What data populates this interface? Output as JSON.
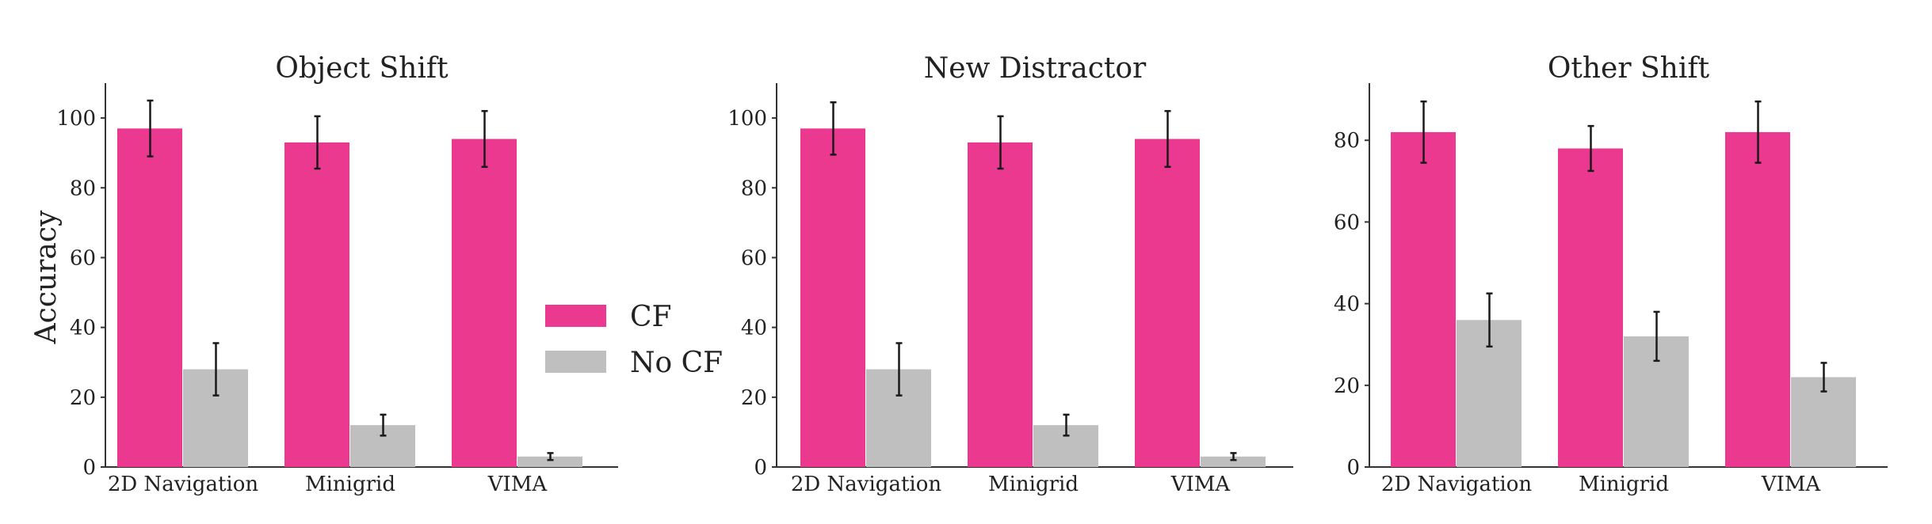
{
  "figure": {
    "ylabel": "Accuracy",
    "colors": {
      "cf": "#EC3990",
      "nocf": "#BFBFBF",
      "axis": "#333333",
      "error": "#1a1a1a"
    },
    "legend": {
      "placement": "center-left-gap",
      "entries": [
        {
          "label": "CF",
          "color": "#EC3990"
        },
        {
          "label": "No CF",
          "color": "#BFBFBF"
        }
      ]
    }
  },
  "chart_data": [
    {
      "type": "bar",
      "title": "Object Shift",
      "categories": [
        "2D Navigation",
        "Minigrid",
        "VIMA"
      ],
      "ylim": [
        0,
        110
      ],
      "yticks": [
        0,
        20,
        40,
        60,
        80,
        100
      ],
      "grid": false,
      "series": [
        {
          "name": "CF",
          "values": [
            97,
            93,
            94
          ],
          "error": [
            8,
            7.5,
            8
          ]
        },
        {
          "name": "No CF",
          "values": [
            28,
            12,
            3
          ],
          "error": [
            7.5,
            3,
            1
          ]
        }
      ]
    },
    {
      "type": "bar",
      "title": "New Distractor",
      "categories": [
        "2D Navigation",
        "Minigrid",
        "VIMA"
      ],
      "ylim": [
        0,
        110
      ],
      "yticks": [
        0,
        20,
        40,
        60,
        80,
        100
      ],
      "grid": false,
      "series": [
        {
          "name": "CF",
          "values": [
            97,
            93,
            94
          ],
          "error": [
            7.5,
            7.5,
            8
          ]
        },
        {
          "name": "No CF",
          "values": [
            28,
            12,
            3
          ],
          "error": [
            7.5,
            3,
            1
          ]
        }
      ]
    },
    {
      "type": "bar",
      "title": "Other Shift",
      "categories": [
        "2D Navigation",
        "Minigrid",
        "VIMA"
      ],
      "ylim": [
        0,
        94
      ],
      "yticks": [
        0,
        20,
        40,
        60,
        80
      ],
      "grid": false,
      "series": [
        {
          "name": "CF",
          "values": [
            82,
            78,
            82
          ],
          "error": [
            7.5,
            5.5,
            7.5
          ]
        },
        {
          "name": "No CF",
          "values": [
            36,
            32,
            22
          ],
          "error": [
            6.5,
            6,
            3.5
          ]
        }
      ]
    }
  ]
}
